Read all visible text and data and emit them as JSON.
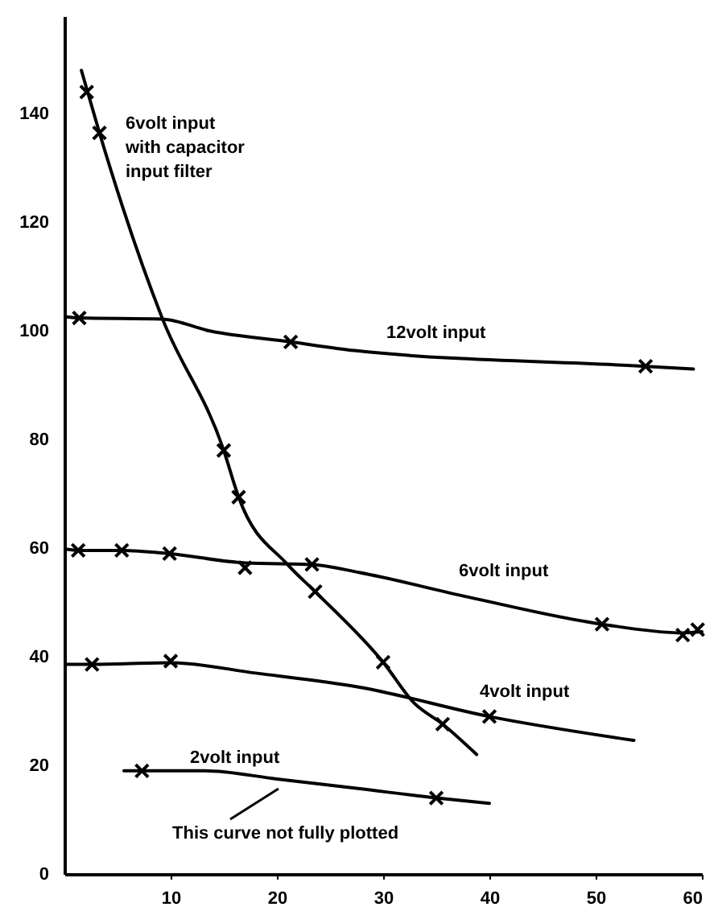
{
  "chart_data": {
    "type": "line",
    "xlim": [
      0,
      60
    ],
    "ylim": [
      0,
      158
    ],
    "xticks": [
      10,
      20,
      30,
      40,
      50,
      60
    ],
    "yticks": [
      0,
      20,
      40,
      60,
      80,
      100,
      120,
      140
    ],
    "series": [
      {
        "type": "line",
        "marker": "none",
        "name": "6volt input\nwith capacitor\ninput filter",
        "color": "#000000",
        "x": [
          1.6,
          3.3,
          9.2,
          15,
          16.4,
          21,
          23.6,
          30,
          32.9,
          35.6,
          38.8
        ],
        "values": [
          148,
          136.5,
          102.4,
          78,
          69.4,
          57,
          52,
          39,
          31.5,
          27.6,
          22
        ]
      },
      {
        "type": "scatter",
        "color": "#000000",
        "x": [
          2.1,
          3.3,
          15,
          16.4,
          23.6,
          30,
          35.6
        ],
        "values": [
          144,
          136.5,
          78,
          69.4,
          52,
          39,
          27.6
        ]
      },
      {
        "type": "line",
        "marker": "none",
        "name": "12volt input",
        "color": "#000000",
        "x": [
          0.2,
          1.4,
          9.2,
          13.7,
          21.3,
          27.3,
          54.7,
          59.2
        ],
        "values": [
          102.6,
          102.4,
          102.2,
          100,
          98,
          96.4,
          93.5,
          93
        ]
      },
      {
        "type": "scatter",
        "color": "#000000",
        "x": [
          1.4,
          21.3,
          54.7
        ],
        "values": [
          102.4,
          98,
          93.5
        ]
      },
      {
        "type": "line",
        "marker": "none",
        "name": "6volt input",
        "color": "#000000",
        "x": [
          0.2,
          1.3,
          5.4,
          9.9,
          17,
          23.3,
          27.8,
          38,
          50.6,
          58.2,
          60
        ],
        "values": [
          59.8,
          59.6,
          59.6,
          59,
          57.3,
          57,
          55.5,
          51,
          46,
          44.4,
          44.6
        ]
      },
      {
        "type": "scatter",
        "color": "#000000",
        "x": [
          1.3,
          5.4,
          9.9,
          17,
          23.3,
          50.6,
          58.2,
          59.6
        ],
        "values": [
          59.6,
          59.6,
          59,
          56.4,
          57,
          46,
          44,
          45
        ]
      },
      {
        "type": "line",
        "marker": "none",
        "name": "4volt input",
        "color": "#000000",
        "x": [
          0.1,
          2.6,
          10,
          18,
          27.8,
          40,
          53.6
        ],
        "values": [
          38.6,
          38.6,
          38.9,
          37,
          34.4,
          29,
          24.6
        ]
      },
      {
        "type": "scatter",
        "color": "#000000",
        "x": [
          2.6,
          10,
          40
        ],
        "values": [
          38.6,
          39.2,
          29
        ]
      },
      {
        "type": "line",
        "marker": "none",
        "name": "2volt input",
        "color": "#000000",
        "x": [
          5.6,
          7.3,
          13.2,
          20,
          27.8,
          35,
          40
        ],
        "values": [
          19,
          19,
          19,
          17.5,
          15.7,
          14,
          13
        ]
      },
      {
        "type": "scatter",
        "color": "#000000",
        "x": [
          7.3,
          35
        ],
        "values": [
          19,
          14
        ]
      }
    ],
    "marker": "cross",
    "annotations": [
      "This curve not fully plotted"
    ]
  }
}
